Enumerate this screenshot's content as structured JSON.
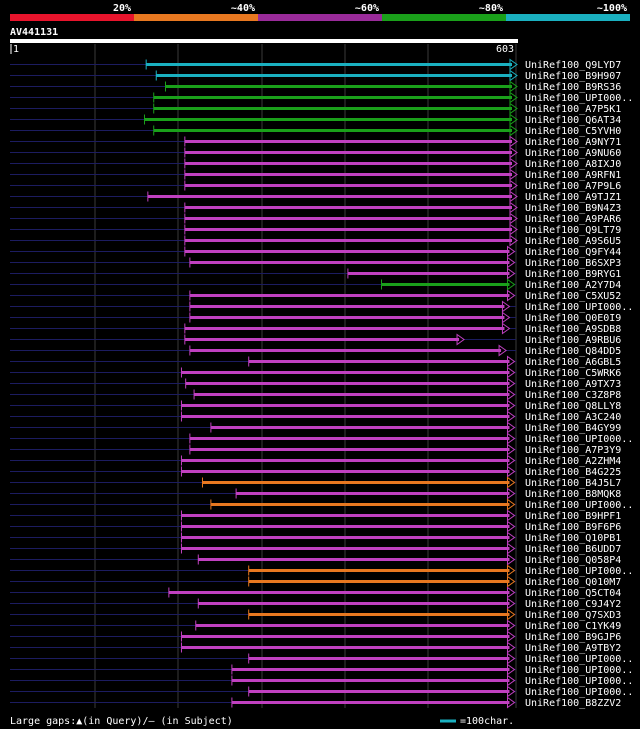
{
  "query": {
    "id": "AV441131",
    "start": "1",
    "end": "603",
    "length": 603
  },
  "colors": {
    "bg": "#000000",
    "c20": "#e8142c",
    "c40": "#e87820",
    "c60": "#9a2b9a",
    "c80": "#1aa01a",
    "c100": "#1ab0c0",
    "magenta_line": "#c040c0",
    "query_bar": "#ffffff",
    "grid": "#3a3a3a",
    "dark_line": "#1c1c60"
  },
  "scale": {
    "labels": [
      "20%",
      "~40%",
      "~60%",
      "~80%",
      "~100%"
    ]
  },
  "hits": [
    {
      "name": "UniRef100_Q9LYD7",
      "start": 163,
      "end": 603,
      "cls": "c100"
    },
    {
      "name": "UniRef100_B9H907",
      "start": 175,
      "end": 603,
      "cls": "c100"
    },
    {
      "name": "UniRef100_B9RS36",
      "start": 186,
      "end": 603,
      "cls": "c80"
    },
    {
      "name": "UniRef100_UPI000..",
      "start": 172,
      "end": 603,
      "cls": "c80"
    },
    {
      "name": "UniRef100_A7P5K1",
      "start": 172,
      "end": 603,
      "cls": "c80"
    },
    {
      "name": "UniRef100_Q6AT34",
      "start": 161,
      "end": 603,
      "cls": "c80"
    },
    {
      "name": "UniRef100_C5YVH0",
      "start": 172,
      "end": 603,
      "cls": "c80"
    },
    {
      "name": "UniRef100_A9NY71",
      "start": 209,
      "end": 603,
      "cls": "c60"
    },
    {
      "name": "UniRef100_A9NU60",
      "start": 209,
      "end": 603,
      "cls": "c60"
    },
    {
      "name": "UniRef100_A8IXJ0",
      "start": 209,
      "end": 603,
      "cls": "c60"
    },
    {
      "name": "UniRef100_A9RFN1",
      "start": 209,
      "end": 603,
      "cls": "c60"
    },
    {
      "name": "UniRef100_A7P9L6",
      "start": 209,
      "end": 603,
      "cls": "c60"
    },
    {
      "name": "UniRef100_A9TJZ1",
      "start": 165,
      "end": 603,
      "cls": "c60"
    },
    {
      "name": "UniRef100_B9N4Z3",
      "start": 209,
      "end": 603,
      "cls": "c60"
    },
    {
      "name": "UniRef100_A9PAR6",
      "start": 209,
      "end": 603,
      "cls": "c60"
    },
    {
      "name": "UniRef100_Q9LT79",
      "start": 209,
      "end": 603,
      "cls": "c60"
    },
    {
      "name": "UniRef100_A9S6U5",
      "start": 209,
      "end": 603,
      "cls": "c60"
    },
    {
      "name": "UniRef100_Q9FY44",
      "start": 209,
      "end": 600,
      "cls": "c60"
    },
    {
      "name": "UniRef100_B6SXP3",
      "start": 215,
      "end": 600,
      "cls": "c60"
    },
    {
      "name": "UniRef100_B9RYG1",
      "start": 403,
      "end": 600,
      "cls": "c60"
    },
    {
      "name": "UniRef100_A2Y7D4",
      "start": 443,
      "end": 600,
      "cls": "c80"
    },
    {
      "name": "UniRef100_C5XU52",
      "start": 215,
      "end": 600,
      "cls": "c60"
    },
    {
      "name": "UniRef100_UPI000..",
      "start": 215,
      "end": 594,
      "cls": "c60"
    },
    {
      "name": "UniRef100_Q0E0I9",
      "start": 215,
      "end": 594,
      "cls": "c60"
    },
    {
      "name": "UniRef100_A9SDB8",
      "start": 209,
      "end": 594,
      "cls": "c60"
    },
    {
      "name": "UniRef100_A9RBU6",
      "start": 209,
      "end": 540,
      "cls": "c60"
    },
    {
      "name": "UniRef100_Q84DD5",
      "start": 215,
      "end": 590,
      "cls": "c60"
    },
    {
      "name": "UniRef100_A6GBL5",
      "start": 285,
      "end": 600,
      "cls": "c60"
    },
    {
      "name": "UniRef100_C5WRK6",
      "start": 205,
      "end": 600,
      "cls": "c60"
    },
    {
      "name": "UniRef100_A9TX73",
      "start": 210,
      "end": 600,
      "cls": "c60"
    },
    {
      "name": "UniRef100_C3Z8P8",
      "start": 220,
      "end": 600,
      "cls": "c60"
    },
    {
      "name": "UniRef100_Q8LLY8",
      "start": 205,
      "end": 600,
      "cls": "c60"
    },
    {
      "name": "UniRef100_A3C240",
      "start": 205,
      "end": 600,
      "cls": "c60"
    },
    {
      "name": "UniRef100_B4GY99",
      "start": 240,
      "end": 600,
      "cls": "c60"
    },
    {
      "name": "UniRef100_UPI000..",
      "start": 215,
      "end": 600,
      "cls": "c60"
    },
    {
      "name": "UniRef100_A7P3Y9",
      "start": 215,
      "end": 600,
      "cls": "c60"
    },
    {
      "name": "UniRef100_A2ZHM4",
      "start": 205,
      "end": 600,
      "cls": "c60"
    },
    {
      "name": "UniRef100_B4G225",
      "start": 205,
      "end": 600,
      "cls": "c60"
    },
    {
      "name": "UniRef100_B4J5L7",
      "start": 230,
      "end": 600,
      "cls": "c40"
    },
    {
      "name": "UniRef100_B8MQK8",
      "start": 270,
      "end": 600,
      "cls": "c60"
    },
    {
      "name": "UniRef100_UPI000..",
      "start": 240,
      "end": 600,
      "cls": "c40"
    },
    {
      "name": "UniRef100_B9HPF1",
      "start": 205,
      "end": 600,
      "cls": "c60"
    },
    {
      "name": "UniRef100_B9F6P6",
      "start": 205,
      "end": 600,
      "cls": "c60"
    },
    {
      "name": "UniRef100_Q10PB1",
      "start": 205,
      "end": 600,
      "cls": "c60"
    },
    {
      "name": "UniRef100_B6UDD7",
      "start": 205,
      "end": 600,
      "cls": "c60"
    },
    {
      "name": "UniRef100_Q058P4",
      "start": 225,
      "end": 600,
      "cls": "c60"
    },
    {
      "name": "UniRef100_UPI000..",
      "start": 285,
      "end": 600,
      "cls": "c40"
    },
    {
      "name": "UniRef100_Q010M7",
      "start": 285,
      "end": 600,
      "cls": "c40"
    },
    {
      "name": "UniRef100_Q5CT04",
      "start": 190,
      "end": 600,
      "cls": "c60"
    },
    {
      "name": "UniRef100_C9J4Y2",
      "start": 225,
      "end": 600,
      "cls": "c60"
    },
    {
      "name": "UniRef100_Q7SXD3",
      "start": 285,
      "end": 600,
      "cls": "c40"
    },
    {
      "name": "UniRef100_C1YK49",
      "start": 222,
      "end": 600,
      "cls": "c60"
    },
    {
      "name": "UniRef100_B9GJP6",
      "start": 205,
      "end": 600,
      "cls": "c60"
    },
    {
      "name": "UniRef100_A9TBY2",
      "start": 205,
      "end": 600,
      "cls": "c60"
    },
    {
      "name": "UniRef100_UPI000..",
      "start": 285,
      "end": 600,
      "cls": "c60"
    },
    {
      "name": "UniRef100_UPI000..",
      "start": 265,
      "end": 600,
      "cls": "c60"
    },
    {
      "name": "UniRef100_UPI000..",
      "start": 265,
      "end": 600,
      "cls": "c60"
    },
    {
      "name": "UniRef100_UPI000..",
      "start": 285,
      "end": 600,
      "cls": "c60"
    },
    {
      "name": "UniRef100_B8ZZV2",
      "start": 265,
      "end": 600,
      "cls": "c60"
    }
  ],
  "legend": {
    "gaps_text": "Large gaps:▲(in Query)/– (in Subject)",
    "scale_text": "=100char."
  }
}
